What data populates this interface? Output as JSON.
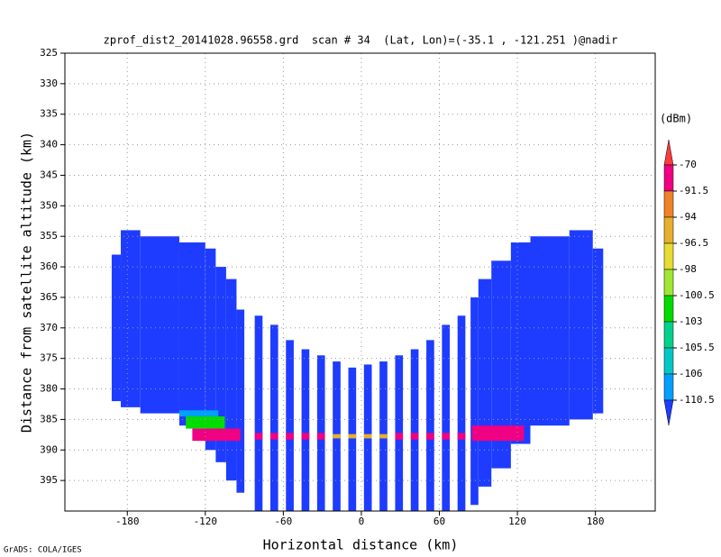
{
  "chart_data": {
    "type": "profile",
    "title": "zprof_dist2_20141028.96558.grd  scan # 34  (Lat, Lon)=(-35.1 , -121.251 )@nadir",
    "x_label": "Horizontal distance (km)",
    "y_label": "Distance from satellite altitude (km)",
    "colorbar_label": "(dBm)",
    "credit": "GrADS: COLA/IGES",
    "xlim": [
      -228,
      226
    ],
    "ylim": [
      325,
      400
    ],
    "xticks": [
      -180,
      -120,
      -60,
      0,
      60,
      120,
      180
    ],
    "yticks": [
      325,
      330,
      335,
      340,
      345,
      350,
      355,
      360,
      365,
      370,
      375,
      380,
      385,
      390,
      395
    ],
    "grid": true,
    "levels": [
      -70,
      -91.5,
      -94,
      -96.5,
      -98,
      -100.5,
      -103,
      -105.5,
      -106,
      -110.5
    ],
    "colors": [
      "#1e3cff",
      "#00a0ff",
      "#00c8c8",
      "#00d28c",
      "#00dc00",
      "#a0e632",
      "#e6dc32",
      "#e6af2d",
      "#f08228",
      "#f00082",
      "#fa3c3c"
    ],
    "regions": [
      {
        "x": [
          -192,
          -185
        ],
        "top": 358,
        "bottom": 382,
        "value": -112
      },
      {
        "x": [
          -185,
          -170
        ],
        "top": 354,
        "bottom": 383,
        "value": -112
      },
      {
        "x": [
          -170,
          -140
        ],
        "top": 355,
        "bottom": 384,
        "value": -112
      },
      {
        "x": [
          -140,
          -120
        ],
        "top": 356,
        "bottom": 386,
        "value": -112
      },
      {
        "x": [
          -120,
          -112
        ],
        "top": 357,
        "bottom": 390,
        "value": -112
      },
      {
        "x": [
          -112,
          -104
        ],
        "top": 360,
        "bottom": 392,
        "value": -112
      },
      {
        "x": [
          -104,
          -96
        ],
        "top": 362,
        "bottom": 395,
        "value": -112
      },
      {
        "x": [
          -96,
          -90
        ],
        "top": 367,
        "bottom": 397,
        "value": -112
      },
      {
        "x": [
          -82,
          -76
        ],
        "top": 368,
        "bottom": 400,
        "value": -112
      },
      {
        "x": [
          -70,
          -64
        ],
        "top": 369.5,
        "bottom": 400,
        "value": -112
      },
      {
        "x": [
          -58,
          -52
        ],
        "top": 372,
        "bottom": 400,
        "value": -112
      },
      {
        "x": [
          -46,
          -40
        ],
        "top": 373.5,
        "bottom": 400,
        "value": -112
      },
      {
        "x": [
          -34,
          -28
        ],
        "top": 374.5,
        "bottom": 400,
        "value": -112
      },
      {
        "x": [
          -22,
          -16
        ],
        "top": 375.5,
        "bottom": 400,
        "value": -112
      },
      {
        "x": [
          -10,
          -4
        ],
        "top": 376.5,
        "bottom": 400,
        "value": -112
      },
      {
        "x": [
          2,
          8
        ],
        "top": 376,
        "bottom": 400,
        "value": -112
      },
      {
        "x": [
          14,
          20
        ],
        "top": 375.5,
        "bottom": 400,
        "value": -112
      },
      {
        "x": [
          26,
          32
        ],
        "top": 374.5,
        "bottom": 400,
        "value": -112
      },
      {
        "x": [
          38,
          44
        ],
        "top": 373.5,
        "bottom": 400,
        "value": -112
      },
      {
        "x": [
          50,
          56
        ],
        "top": 372,
        "bottom": 400,
        "value": -112
      },
      {
        "x": [
          62,
          68
        ],
        "top": 369.5,
        "bottom": 400,
        "value": -112
      },
      {
        "x": [
          74,
          80
        ],
        "top": 368,
        "bottom": 400,
        "value": -112
      },
      {
        "x": [
          84,
          90
        ],
        "top": 365,
        "bottom": 399,
        "value": -112
      },
      {
        "x": [
          90,
          100
        ],
        "top": 362,
        "bottom": 396,
        "value": -112
      },
      {
        "x": [
          100,
          115
        ],
        "top": 359,
        "bottom": 393,
        "value": -112
      },
      {
        "x": [
          115,
          130
        ],
        "top": 356,
        "bottom": 389,
        "value": -112
      },
      {
        "x": [
          130,
          160
        ],
        "top": 355,
        "bottom": 386,
        "value": -112
      },
      {
        "x": [
          160,
          178
        ],
        "top": 354,
        "bottom": 385,
        "value": -112
      },
      {
        "x": [
          178,
          186
        ],
        "top": 357,
        "bottom": 384,
        "value": -112
      },
      {
        "x": [
          -140,
          -110
        ],
        "top": 383.5,
        "bottom": 384.5,
        "value": -107
      },
      {
        "x": [
          -135,
          -105
        ],
        "top": 384.5,
        "bottom": 386.5,
        "value": -102
      },
      {
        "x": [
          -130,
          -93
        ],
        "top": 386.5,
        "bottom": 388.5,
        "value": -80
      },
      {
        "x": [
          -82,
          -76
        ],
        "top": 387.2,
        "bottom": 388.3,
        "value": -80
      },
      {
        "x": [
          -70,
          -64
        ],
        "top": 387.2,
        "bottom": 388.3,
        "value": -80
      },
      {
        "x": [
          -58,
          -52
        ],
        "top": 387.2,
        "bottom": 388.3,
        "value": -80
      },
      {
        "x": [
          -46,
          -40
        ],
        "top": 387.2,
        "bottom": 388.3,
        "value": -80
      },
      {
        "x": [
          -34,
          -28
        ],
        "top": 387.2,
        "bottom": 388.3,
        "value": -80
      },
      {
        "x": [
          -22,
          -16
        ],
        "top": 387.4,
        "bottom": 388.1,
        "value": -95
      },
      {
        "x": [
          -10,
          -4
        ],
        "top": 387.4,
        "bottom": 388.1,
        "value": -95
      },
      {
        "x": [
          2,
          8
        ],
        "top": 387.4,
        "bottom": 388.1,
        "value": -95
      },
      {
        "x": [
          14,
          20
        ],
        "top": 387.4,
        "bottom": 388.1,
        "value": -95
      },
      {
        "x": [
          26,
          32
        ],
        "top": 387.2,
        "bottom": 388.3,
        "value": -80
      },
      {
        "x": [
          38,
          44
        ],
        "top": 387.2,
        "bottom": 388.3,
        "value": -80
      },
      {
        "x": [
          50,
          56
        ],
        "top": 387.2,
        "bottom": 388.3,
        "value": -80
      },
      {
        "x": [
          62,
          68
        ],
        "top": 387.2,
        "bottom": 388.3,
        "value": -80
      },
      {
        "x": [
          74,
          80
        ],
        "top": 387.2,
        "bottom": 388.3,
        "value": -80
      },
      {
        "x": [
          85,
          125
        ],
        "top": 386,
        "bottom": 388.5,
        "value": -80
      }
    ]
  }
}
